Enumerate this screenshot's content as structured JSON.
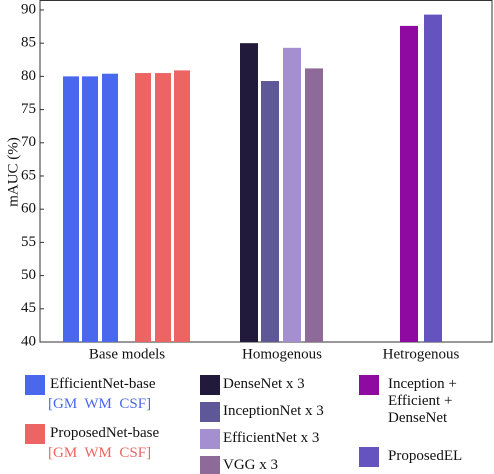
{
  "chart_data": {
    "type": "bar",
    "y_label": "mAUC (%)",
    "categories": [
      "Base models",
      "Homogenous",
      "Hetrogenous"
    ],
    "series": [
      {
        "name": "EfficientNet-base",
        "sublabel": "[GM  WM  CSF]",
        "color": "#4a68ee",
        "values": [
          [
            80.0,
            80.0,
            80.4
          ],
          null,
          null
        ]
      },
      {
        "name": "ProposedNet-base",
        "sublabel": "[GM  WM  CSF]",
        "color": "#ec6464",
        "values": [
          [
            80.5,
            80.5,
            80.9
          ],
          null,
          null
        ]
      },
      {
        "name": "DenseNet x 3",
        "color": "#221a3a",
        "values": [
          null,
          85.0,
          null
        ]
      },
      {
        "name": "InceptionNet x 3",
        "color": "#5f5898",
        "values": [
          null,
          79.3,
          null
        ]
      },
      {
        "name": "EfficientNet x 3",
        "color": "#a48fd0",
        "values": [
          null,
          84.3,
          null
        ]
      },
      {
        "name": "VGG x 3",
        "color": "#8d6a97",
        "values": [
          null,
          81.2,
          null
        ]
      },
      {
        "name": "Inception + Efficient + DenseNet",
        "color": "#8e0aa0",
        "values": [
          null,
          null,
          87.6
        ]
      },
      {
        "name": "ProposedEL",
        "color": "#6553c0",
        "values": [
          null,
          null,
          89.3
        ]
      }
    ],
    "ylim": [
      40,
      91.5
    ],
    "yticks": [
      40,
      45,
      50,
      55,
      60,
      65,
      70,
      75,
      80,
      85,
      90
    ]
  }
}
